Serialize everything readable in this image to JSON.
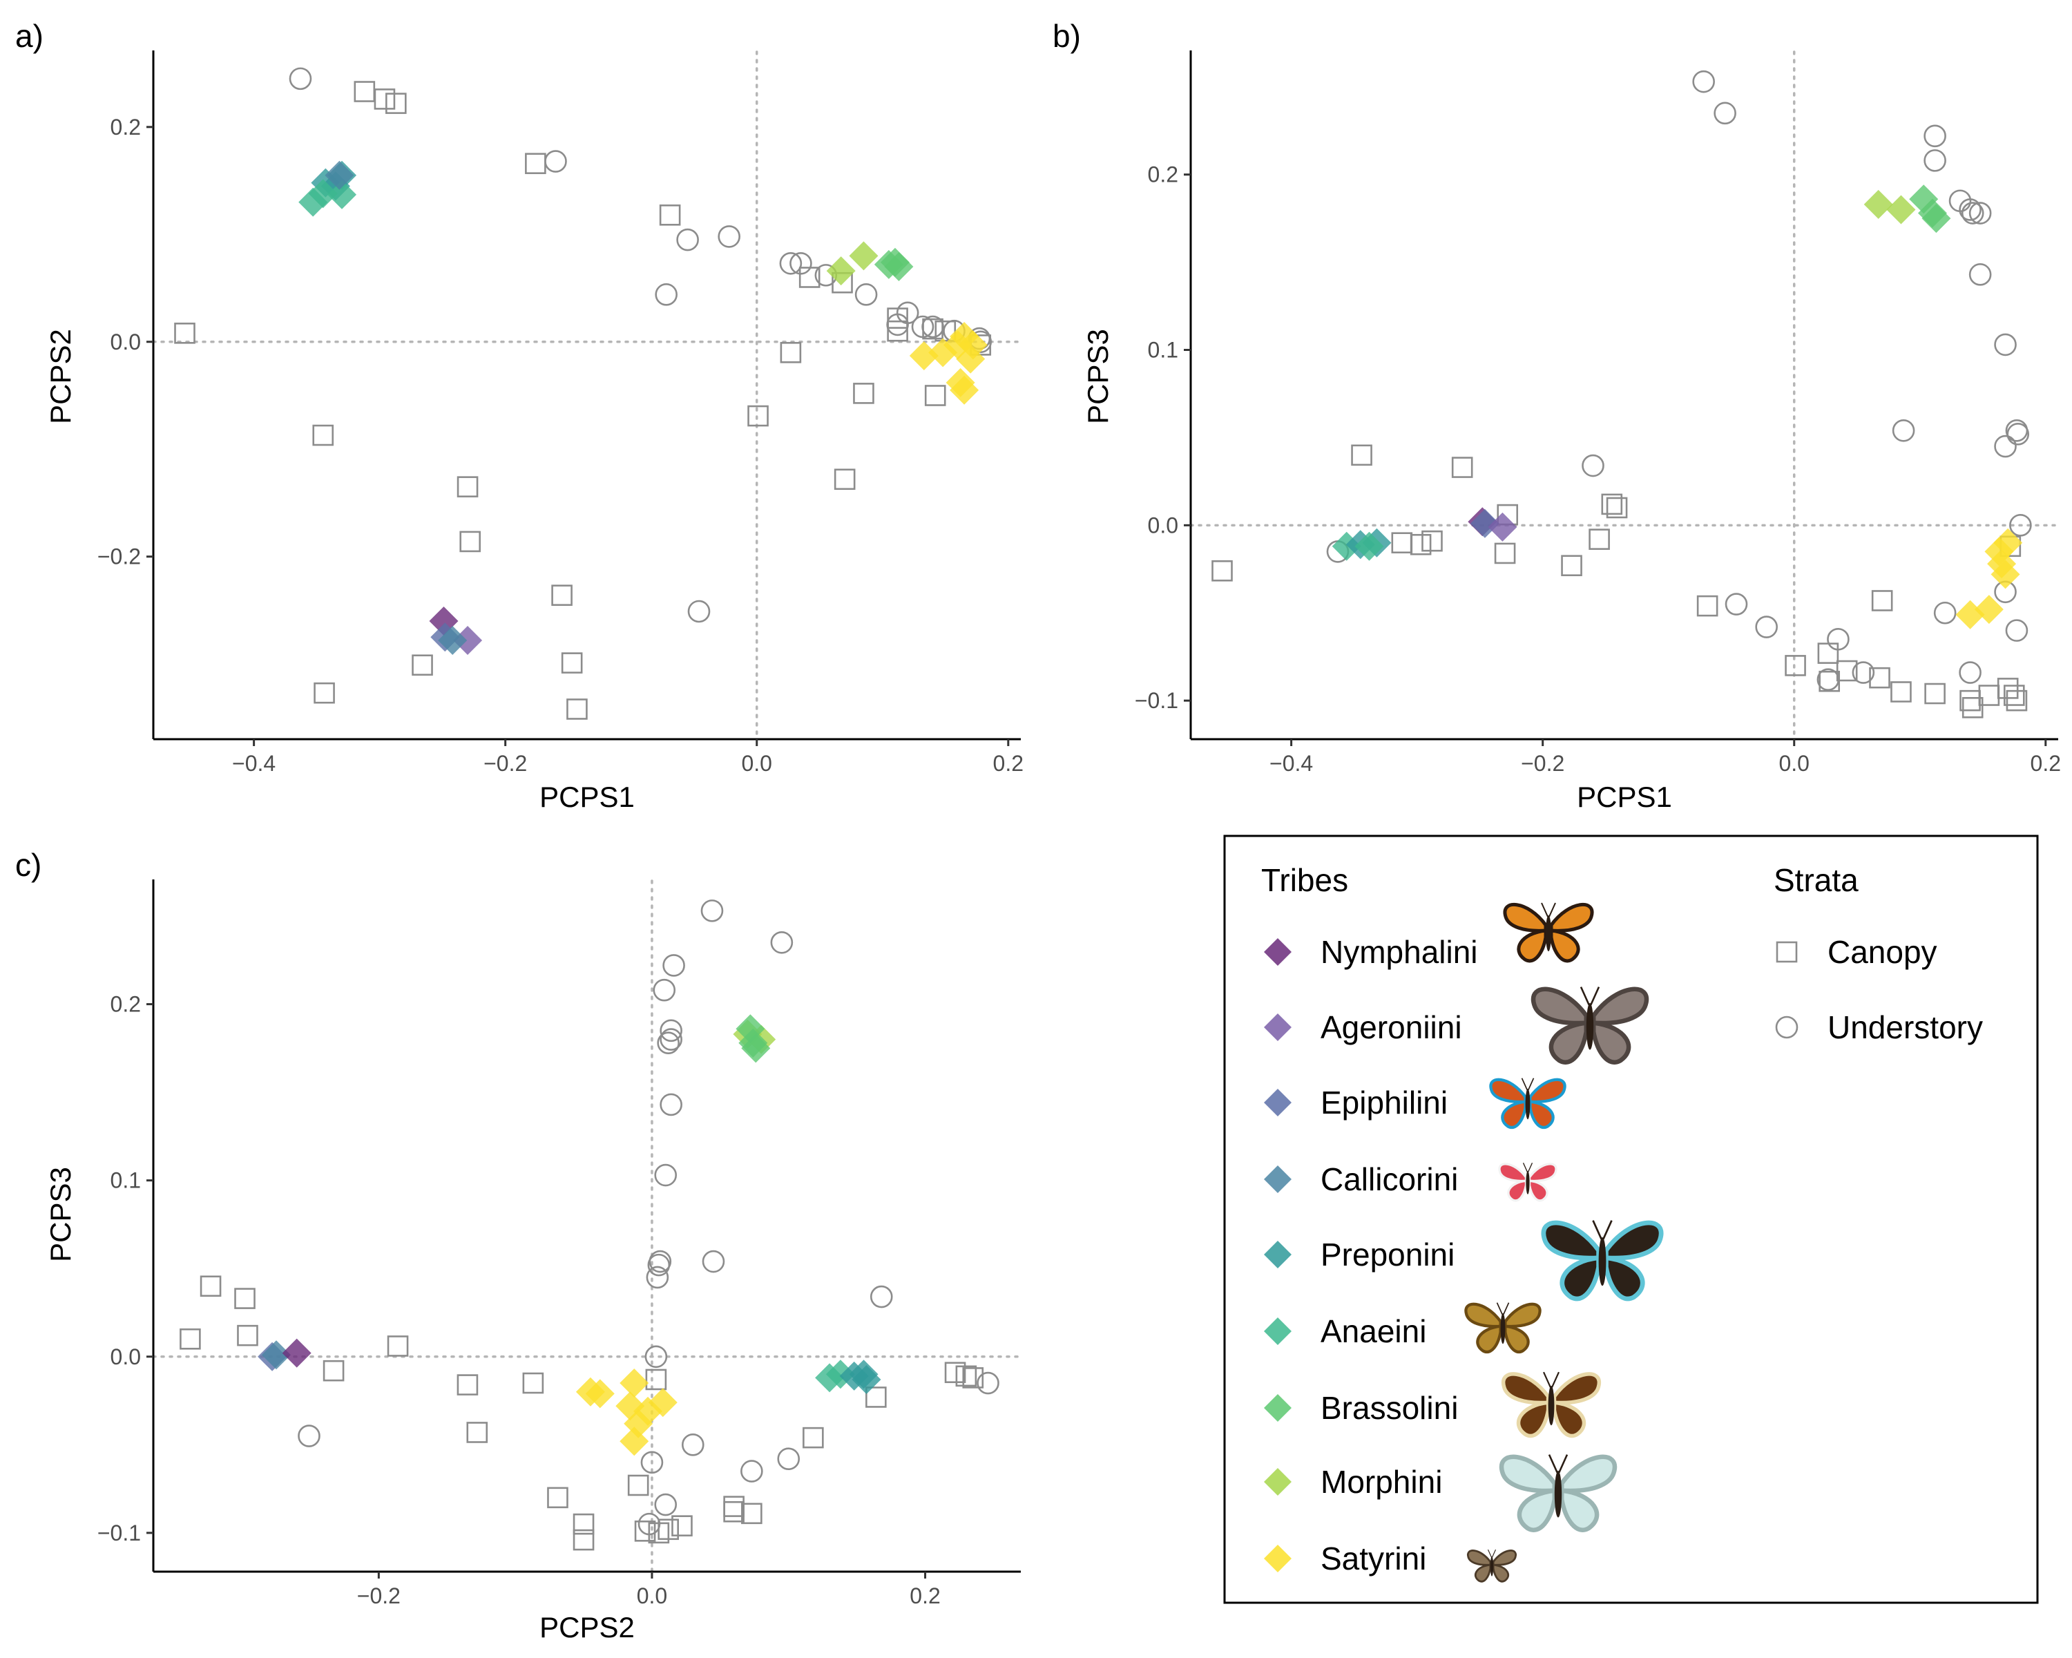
{
  "panels": [
    {
      "label": "a)",
      "xlabel": "PCPS1",
      "ylabel": "PCPS2",
      "xlim": [
        -0.48,
        0.21
      ],
      "ylim": [
        -0.37,
        0.27
      ],
      "xticks": [
        -0.4,
        -0.2,
        0.0,
        0.2
      ],
      "yticks": [
        -0.2,
        0.0,
        0.2
      ],
      "xtick_labels": [
        "−0.4",
        "−0.2",
        "0.0",
        "0.2"
      ],
      "ytick_labels": [
        "−0.2",
        "0.0",
        "0.2"
      ],
      "tribe_points": [
        {
          "tribe": "Preponini",
          "x": -0.343,
          "y": 0.148
        },
        {
          "tribe": "Preponini",
          "x": -0.33,
          "y": 0.155
        },
        {
          "tribe": "Preponini",
          "x": -0.335,
          "y": 0.145
        },
        {
          "tribe": "Anaeini",
          "x": -0.353,
          "y": 0.13
        },
        {
          "tribe": "Anaeini",
          "x": -0.345,
          "y": 0.138
        },
        {
          "tribe": "Anaeini",
          "x": -0.33,
          "y": 0.137
        },
        {
          "tribe": "Callicorini",
          "x": -0.332,
          "y": 0.155
        },
        {
          "tribe": "Nymphalini",
          "x": -0.249,
          "y": -0.26
        },
        {
          "tribe": "Ageroniini",
          "x": -0.23,
          "y": -0.278
        },
        {
          "tribe": "Epiphilini",
          "x": -0.248,
          "y": -0.275
        },
        {
          "tribe": "Callicorini",
          "x": -0.242,
          "y": -0.278
        },
        {
          "tribe": "Morphini",
          "x": 0.067,
          "y": 0.066
        },
        {
          "tribe": "Morphini",
          "x": 0.085,
          "y": 0.08
        },
        {
          "tribe": "Brassolini",
          "x": 0.105,
          "y": 0.072
        },
        {
          "tribe": "Brassolini",
          "x": 0.11,
          "y": 0.074
        },
        {
          "tribe": "Brassolini",
          "x": 0.113,
          "y": 0.07
        },
        {
          "tribe": "Satyrini",
          "x": 0.133,
          "y": -0.013
        },
        {
          "tribe": "Satyrini",
          "x": 0.148,
          "y": -0.01
        },
        {
          "tribe": "Satyrini",
          "x": 0.16,
          "y": -0.003
        },
        {
          "tribe": "Satyrini",
          "x": 0.165,
          "y": 0.005
        },
        {
          "tribe": "Satyrini",
          "x": 0.17,
          "y": -0.016
        },
        {
          "tribe": "Satyrini",
          "x": 0.162,
          "y": -0.038
        },
        {
          "tribe": "Satyrini",
          "x": 0.165,
          "y": -0.045
        },
        {
          "tribe": "Satyrini",
          "x": 0.172,
          "y": -0.003
        }
      ],
      "canopy_points": [
        {
          "x": -0.455,
          "y": 0.008
        },
        {
          "x": -0.312,
          "y": 0.233
        },
        {
          "x": -0.296,
          "y": 0.226
        },
        {
          "x": -0.287,
          "y": 0.222
        },
        {
          "x": -0.176,
          "y": 0.166
        },
        {
          "x": -0.069,
          "y": 0.118
        },
        {
          "x": -0.345,
          "y": -0.087
        },
        {
          "x": -0.23,
          "y": -0.135
        },
        {
          "x": -0.228,
          "y": -0.186
        },
        {
          "x": -0.155,
          "y": -0.236
        },
        {
          "x": -0.266,
          "y": -0.301
        },
        {
          "x": -0.147,
          "y": -0.299
        },
        {
          "x": -0.143,
          "y": -0.342
        },
        {
          "x": -0.344,
          "y": -0.327
        },
        {
          "x": 0.001,
          "y": -0.069
        },
        {
          "x": 0.027,
          "y": -0.01
        },
        {
          "x": 0.042,
          "y": 0.06
        },
        {
          "x": 0.068,
          "y": 0.055
        },
        {
          "x": 0.085,
          "y": -0.048
        },
        {
          "x": 0.07,
          "y": -0.128
        },
        {
          "x": 0.142,
          "y": -0.05
        },
        {
          "x": 0.112,
          "y": 0.022
        },
        {
          "x": 0.112,
          "y": 0.01
        },
        {
          "x": 0.14,
          "y": 0.012
        },
        {
          "x": 0.15,
          "y": 0.01
        },
        {
          "x": 0.178,
          "y": -0.003
        }
      ],
      "understory_points": [
        {
          "x": -0.363,
          "y": 0.245
        },
        {
          "x": -0.16,
          "y": 0.168
        },
        {
          "x": -0.072,
          "y": 0.044
        },
        {
          "x": -0.055,
          "y": 0.095
        },
        {
          "x": -0.022,
          "y": 0.098
        },
        {
          "x": 0.027,
          "y": 0.073
        },
        {
          "x": 0.035,
          "y": 0.073
        },
        {
          "x": 0.055,
          "y": 0.062
        },
        {
          "x": 0.087,
          "y": 0.044
        },
        {
          "x": 0.12,
          "y": 0.027
        },
        {
          "x": 0.112,
          "y": 0.016
        },
        {
          "x": 0.132,
          "y": 0.014
        },
        {
          "x": 0.14,
          "y": 0.014
        },
        {
          "x": 0.157,
          "y": 0.01
        },
        {
          "x": 0.177,
          "y": 0.003
        },
        {
          "x": 0.178,
          "y": 0.0
        },
        {
          "x": -0.046,
          "y": -0.251
        }
      ]
    },
    {
      "label": "b)",
      "xlabel": "PCPS1",
      "ylabel": "PCPS3",
      "xlim": [
        -0.48,
        0.21
      ],
      "ylim": [
        -0.122,
        0.27
      ],
      "xticks": [
        -0.4,
        -0.2,
        0.0,
        0.2
      ],
      "yticks": [
        -0.1,
        0.0,
        0.1,
        0.2
      ],
      "xtick_labels": [
        "−0.4",
        "−0.2",
        "0.0",
        "0.2"
      ],
      "ytick_labels": [
        "−0.1",
        "0.0",
        "0.1",
        "0.2"
      ],
      "tribe_points": [
        {
          "tribe": "Anaeini",
          "x": -0.356,
          "y": -0.012
        },
        {
          "tribe": "Preponini",
          "x": -0.345,
          "y": -0.011
        },
        {
          "tribe": "Preponini",
          "x": -0.332,
          "y": -0.01
        },
        {
          "tribe": "Anaeini",
          "x": -0.338,
          "y": -0.012
        },
        {
          "tribe": "Nymphalini",
          "x": -0.248,
          "y": 0.002
        },
        {
          "tribe": "Epiphilini",
          "x": -0.246,
          "y": 0.001
        },
        {
          "tribe": "Ageroniini",
          "x": -0.232,
          "y": -0.001
        },
        {
          "tribe": "Morphini",
          "x": 0.067,
          "y": 0.183
        },
        {
          "tribe": "Morphini",
          "x": 0.085,
          "y": 0.18
        },
        {
          "tribe": "Brassolini",
          "x": 0.103,
          "y": 0.186
        },
        {
          "tribe": "Brassolini",
          "x": 0.11,
          "y": 0.178
        },
        {
          "tribe": "Brassolini",
          "x": 0.113,
          "y": 0.175
        },
        {
          "tribe": "Satyrini",
          "x": 0.163,
          "y": -0.015
        },
        {
          "tribe": "Satyrini",
          "x": 0.165,
          "y": -0.022
        },
        {
          "tribe": "Satyrini",
          "x": 0.168,
          "y": -0.028
        },
        {
          "tribe": "Satyrini",
          "x": 0.17,
          "y": -0.01
        },
        {
          "tribe": "Satyrini",
          "x": 0.14,
          "y": -0.051
        },
        {
          "tribe": "Satyrini",
          "x": 0.155,
          "y": -0.048
        }
      ],
      "canopy_points": [
        {
          "x": -0.455,
          "y": -0.026
        },
        {
          "x": -0.344,
          "y": 0.04
        },
        {
          "x": -0.264,
          "y": 0.033
        },
        {
          "x": -0.312,
          "y": -0.01
        },
        {
          "x": -0.297,
          "y": -0.011
        },
        {
          "x": -0.288,
          "y": -0.009
        },
        {
          "x": -0.228,
          "y": 0.006
        },
        {
          "x": -0.23,
          "y": -0.016
        },
        {
          "x": -0.177,
          "y": -0.023
        },
        {
          "x": -0.155,
          "y": -0.008
        },
        {
          "x": -0.145,
          "y": 0.012
        },
        {
          "x": -0.141,
          "y": 0.01
        },
        {
          "x": -0.069,
          "y": -0.046
        },
        {
          "x": 0.001,
          "y": -0.08
        },
        {
          "x": 0.027,
          "y": -0.073
        },
        {
          "x": 0.028,
          "y": -0.089
        },
        {
          "x": 0.042,
          "y": -0.083
        },
        {
          "x": 0.068,
          "y": -0.087
        },
        {
          "x": 0.07,
          "y": -0.043
        },
        {
          "x": 0.085,
          "y": -0.095
        },
        {
          "x": 0.112,
          "y": -0.096
        },
        {
          "x": 0.14,
          "y": -0.1
        },
        {
          "x": 0.142,
          "y": -0.104
        },
        {
          "x": 0.155,
          "y": -0.097
        },
        {
          "x": 0.17,
          "y": -0.093
        },
        {
          "x": 0.175,
          "y": -0.097
        },
        {
          "x": 0.177,
          "y": -0.1
        },
        {
          "x": 0.172,
          "y": -0.012
        }
      ],
      "understory_points": [
        {
          "x": -0.363,
          "y": -0.015
        },
        {
          "x": -0.072,
          "y": 0.253
        },
        {
          "x": -0.055,
          "y": 0.235
        },
        {
          "x": -0.16,
          "y": 0.034
        },
        {
          "x": -0.046,
          "y": -0.045
        },
        {
          "x": -0.022,
          "y": -0.058
        },
        {
          "x": 0.027,
          "y": -0.088
        },
        {
          "x": 0.035,
          "y": -0.065
        },
        {
          "x": 0.055,
          "y": -0.084
        },
        {
          "x": 0.087,
          "y": 0.054
        },
        {
          "x": 0.112,
          "y": 0.222
        },
        {
          "x": 0.112,
          "y": 0.208
        },
        {
          "x": 0.132,
          "y": 0.185
        },
        {
          "x": 0.14,
          "y": 0.18
        },
        {
          "x": 0.148,
          "y": 0.178
        },
        {
          "x": 0.142,
          "y": 0.178
        },
        {
          "x": 0.148,
          "y": 0.143
        },
        {
          "x": 0.168,
          "y": 0.103
        },
        {
          "x": 0.177,
          "y": 0.054
        },
        {
          "x": 0.178,
          "y": 0.052
        },
        {
          "x": 0.168,
          "y": 0.045
        },
        {
          "x": 0.18,
          "y": 0.0
        },
        {
          "x": 0.12,
          "y": -0.05
        },
        {
          "x": 0.14,
          "y": -0.084
        },
        {
          "x": 0.168,
          "y": -0.038
        },
        {
          "x": 0.177,
          "y": -0.06
        }
      ]
    },
    {
      "label": "c)",
      "xlabel": "PCPS2",
      "ylabel": "PCPS3",
      "xlim": [
        -0.365,
        0.27
      ],
      "ylim": [
        -0.122,
        0.27
      ],
      "xticks": [
        -0.2,
        0.0,
        0.2
      ],
      "yticks": [
        -0.1,
        0.0,
        0.1,
        0.2
      ],
      "xtick_labels": [
        "−0.2",
        "0.0",
        "0.2"
      ],
      "ytick_labels": [
        "−0.1",
        "0.0",
        "0.1",
        "0.2"
      ],
      "tribe_points": [
        {
          "tribe": "Epiphilini",
          "x": -0.278,
          "y": 0.0
        },
        {
          "tribe": "Callicorini",
          "x": -0.275,
          "y": 0.001
        },
        {
          "tribe": "Nymphalini",
          "x": -0.26,
          "y": 0.002
        },
        {
          "tribe": "Morphini",
          "x": 0.07,
          "y": 0.183
        },
        {
          "tribe": "Morphini",
          "x": 0.08,
          "y": 0.18
        },
        {
          "tribe": "Brassolini",
          "x": 0.072,
          "y": 0.186
        },
        {
          "tribe": "Brassolini",
          "x": 0.074,
          "y": 0.178
        },
        {
          "tribe": "Brassolini",
          "x": 0.076,
          "y": 0.175
        },
        {
          "tribe": "Anaeini",
          "x": 0.13,
          "y": -0.012
        },
        {
          "tribe": "Anaeini",
          "x": 0.138,
          "y": -0.01
        },
        {
          "tribe": "Preponini",
          "x": 0.148,
          "y": -0.011
        },
        {
          "tribe": "Preponini",
          "x": 0.155,
          "y": -0.01
        },
        {
          "tribe": "Preponini",
          "x": 0.157,
          "y": -0.013
        },
        {
          "tribe": "Satyrini",
          "x": -0.045,
          "y": -0.02
        },
        {
          "tribe": "Satyrini",
          "x": -0.038,
          "y": -0.021
        },
        {
          "tribe": "Satyrini",
          "x": -0.013,
          "y": -0.015
        },
        {
          "tribe": "Satyrini",
          "x": -0.016,
          "y": -0.028
        },
        {
          "tribe": "Satyrini",
          "x": -0.003,
          "y": -0.031
        },
        {
          "tribe": "Satyrini",
          "x": 0.008,
          "y": -0.026
        },
        {
          "tribe": "Satyrini",
          "x": -0.01,
          "y": -0.038
        },
        {
          "tribe": "Satyrini",
          "x": -0.013,
          "y": -0.048
        }
      ],
      "canopy_points": [
        {
          "x": -0.338,
          "y": 0.01
        },
        {
          "x": -0.323,
          "y": 0.04
        },
        {
          "x": -0.298,
          "y": 0.033
        },
        {
          "x": -0.296,
          "y": 0.012
        },
        {
          "x": -0.233,
          "y": -0.008
        },
        {
          "x": -0.186,
          "y": 0.006
        },
        {
          "x": -0.135,
          "y": -0.016
        },
        {
          "x": -0.128,
          "y": -0.043
        },
        {
          "x": -0.087,
          "y": -0.015
        },
        {
          "x": -0.069,
          "y": -0.08
        },
        {
          "x": -0.05,
          "y": -0.095
        },
        {
          "x": -0.05,
          "y": -0.104
        },
        {
          "x": -0.01,
          "y": -0.073
        },
        {
          "x": 0.003,
          "y": -0.013
        },
        {
          "x": -0.005,
          "y": -0.099
        },
        {
          "x": 0.005,
          "y": -0.1
        },
        {
          "x": 0.012,
          "y": -0.098
        },
        {
          "x": 0.022,
          "y": -0.096
        },
        {
          "x": 0.06,
          "y": -0.085
        },
        {
          "x": 0.06,
          "y": -0.088
        },
        {
          "x": 0.073,
          "y": -0.089
        },
        {
          "x": 0.118,
          "y": -0.046
        },
        {
          "x": 0.164,
          "y": -0.023
        },
        {
          "x": 0.222,
          "y": -0.009
        },
        {
          "x": 0.23,
          "y": -0.011
        },
        {
          "x": 0.235,
          "y": -0.012
        }
      ],
      "understory_points": [
        {
          "x": -0.251,
          "y": -0.045
        },
        {
          "x": 0.044,
          "y": 0.253
        },
        {
          "x": 0.095,
          "y": 0.235
        },
        {
          "x": 0.016,
          "y": 0.222
        },
        {
          "x": 0.009,
          "y": 0.208
        },
        {
          "x": 0.014,
          "y": 0.185
        },
        {
          "x": 0.014,
          "y": 0.18
        },
        {
          "x": 0.012,
          "y": 0.178
        },
        {
          "x": 0.014,
          "y": 0.143
        },
        {
          "x": 0.01,
          "y": 0.103
        },
        {
          "x": 0.006,
          "y": 0.054
        },
        {
          "x": 0.005,
          "y": 0.052
        },
        {
          "x": 0.004,
          "y": 0.045
        },
        {
          "x": 0.045,
          "y": 0.054
        },
        {
          "x": 0.168,
          "y": 0.034
        },
        {
          "x": 0.003,
          "y": 0.0
        },
        {
          "x": 0.0,
          "y": -0.06
        },
        {
          "x": 0.01,
          "y": -0.084
        },
        {
          "x": -0.002,
          "y": -0.095
        },
        {
          "x": 0.03,
          "y": -0.05
        },
        {
          "x": 0.073,
          "y": -0.065
        },
        {
          "x": 0.1,
          "y": -0.058
        },
        {
          "x": 0.246,
          "y": -0.015
        }
      ]
    }
  ],
  "legend": {
    "tribes_title": "Tribes",
    "strata_title": "Strata",
    "tribes": [
      {
        "name": "Nymphalini",
        "color": "#6a2a7a"
      },
      {
        "name": "Ageroniini",
        "color": "#7a5ea8"
      },
      {
        "name": "Epiphilini",
        "color": "#5c6fa8"
      },
      {
        "name": "Callicorini",
        "color": "#4a85a3"
      },
      {
        "name": "Preponini",
        "color": "#2f9a9a"
      },
      {
        "name": "Anaeini",
        "color": "#3cb88e"
      },
      {
        "name": "Brassolini",
        "color": "#5cc870"
      },
      {
        "name": "Morphini",
        "color": "#a6d64a"
      },
      {
        "name": "Satyrini",
        "color": "#fbe02a"
      }
    ],
    "strata": [
      {
        "name": "Canopy",
        "shape": "square"
      },
      {
        "name": "Understory",
        "shape": "circle"
      }
    ],
    "butterfly_icons": [
      {
        "icon": "orange-butterfly-icon",
        "wing": "#e58a1f",
        "edge": "#2b1a10"
      },
      {
        "icon": "mottled-grey-butterfly-icon",
        "wing": "#8a7d78",
        "edge": "#4e4440"
      },
      {
        "icon": "orange-blue-butterfly-icon",
        "wing": "#d4561c",
        "edge": "#1b9bd0"
      },
      {
        "icon": "red-white-butterfly-icon",
        "wing": "#e3485a",
        "edge": "#f2f2f2"
      },
      {
        "icon": "dark-blue-banded-butterfly-icon",
        "wing": "#2c2118",
        "edge": "#5fc4d6"
      },
      {
        "icon": "leaf-wing-butterfly-icon",
        "wing": "#b58a2e",
        "edge": "#6b4a12"
      },
      {
        "icon": "brown-owl-butterfly-icon",
        "wing": "#6b3a12",
        "edge": "#e8d8a8"
      },
      {
        "icon": "pale-morpho-butterfly-icon",
        "wing": "#cfe8e6",
        "edge": "#9bb5b3"
      },
      {
        "icon": "small-brown-butterfly-icon",
        "wing": "#8a7458",
        "edge": "#4b3a28"
      }
    ]
  },
  "colors": {
    "stratum_marker": "#8c8c8c",
    "reference_line": "#b5b5b5",
    "axis": "#000000"
  }
}
